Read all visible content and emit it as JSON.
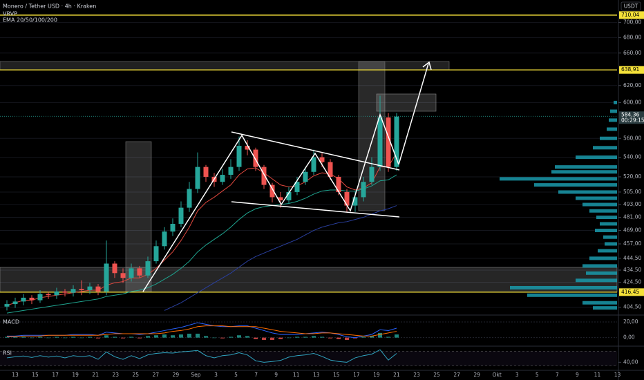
{
  "chart_data": {
    "type": "candlestick",
    "title": "Monero / Tether USD · 4h · Kraken",
    "indicator_labels": [
      "VRVP",
      "EMA 20/50/100/200"
    ],
    "currency": "USDT",
    "log_scale": true,
    "grid": true,
    "up_color": "#26a69a",
    "down_color": "#ef5350",
    "ylim": [
      399,
      731
    ],
    "yticks": [
      {
        "value": 700,
        "label": "700,00"
      },
      {
        "value": 680,
        "label": "680,00"
      },
      {
        "value": 660,
        "label": "660,00"
      },
      {
        "value": 620,
        "label": "620,00"
      },
      {
        "value": 600,
        "label": "600,00"
      },
      {
        "value": 560,
        "label": "560,00"
      },
      {
        "value": 540,
        "label": "540,00"
      },
      {
        "value": 520,
        "label": "520,00"
      },
      {
        "value": 505,
        "label": "505,00"
      },
      {
        "value": 493,
        "label": "493,00"
      },
      {
        "value": 481,
        "label": "481,00"
      },
      {
        "value": 469,
        "label": "469,00"
      },
      {
        "value": 457,
        "label": "457,00"
      },
      {
        "value": 444.5,
        "label": "444,50"
      },
      {
        "value": 434.5,
        "label": "434,50"
      },
      {
        "value": 424.5,
        "label": "424,50"
      },
      {
        "value": 404.5,
        "label": "404,50"
      }
    ],
    "levels": [
      {
        "value": 710.04,
        "label": "710,04"
      },
      {
        "value": 638.91,
        "label": "638,91"
      },
      {
        "value": 416.45,
        "label": "416,45"
      }
    ],
    "level_color": "#f5e13a",
    "current_price": {
      "value": 584.36,
      "label": "584,36",
      "countdown": "00:29:15"
    },
    "x_labels": [
      "13",
      "15",
      "17",
      "19",
      "21",
      "23",
      "25",
      "27",
      "29",
      "Sep",
      "3",
      "5",
      "7",
      "9",
      "11",
      "13",
      "15",
      "17",
      "19",
      "21",
      "23",
      "25",
      "27",
      "29",
      "Okt",
      "3",
      "5",
      "7",
      "9",
      "11",
      "13"
    ],
    "open": [
      405,
      407,
      409,
      412,
      410,
      415,
      414,
      417,
      416,
      419,
      418,
      421,
      417,
      440,
      432,
      428,
      436,
      430,
      442,
      455,
      468,
      475,
      490,
      508,
      530,
      520,
      515,
      522,
      530,
      552,
      548,
      530,
      512,
      500,
      497,
      505,
      515,
      525,
      540,
      535,
      520,
      505,
      492,
      500,
      515,
      530,
      583,
      530
    ],
    "high": [
      410,
      412,
      415,
      414,
      418,
      417,
      420,
      419,
      422,
      426,
      424,
      423,
      460,
      442,
      436,
      440,
      438,
      446,
      460,
      472,
      480,
      496,
      515,
      545,
      532,
      524,
      528,
      538,
      562,
      558,
      550,
      532,
      514,
      505,
      510,
      520,
      530,
      548,
      544,
      538,
      522,
      508,
      506,
      520,
      540,
      608,
      588,
      588
    ],
    "low": [
      402,
      404,
      406,
      407,
      408,
      411,
      411,
      413,
      413,
      414,
      415,
      414,
      414,
      428,
      424,
      425,
      428,
      428,
      440,
      452,
      464,
      472,
      486,
      504,
      515,
      510,
      512,
      518,
      526,
      542,
      526,
      508,
      495,
      490,
      494,
      502,
      512,
      522,
      530,
      517,
      502,
      486,
      486,
      496,
      512,
      526,
      525,
      526
    ],
    "close": [
      407,
      409,
      412,
      410,
      415,
      414,
      417,
      416,
      419,
      418,
      421,
      417,
      440,
      432,
      428,
      436,
      430,
      442,
      455,
      468,
      475,
      490,
      508,
      530,
      520,
      515,
      522,
      530,
      552,
      548,
      530,
      512,
      500,
      497,
      505,
      515,
      525,
      540,
      535,
      520,
      505,
      492,
      500,
      515,
      530,
      583,
      530,
      584
    ],
    "series": [
      {
        "name": "EMA 20",
        "color": "#e0483e",
        "values": [
          406,
          408,
          410,
          410,
          412,
          413,
          414,
          415,
          416,
          417,
          418,
          418,
          422,
          424,
          425,
          428,
          428,
          431,
          436,
          443,
          450,
          460,
          472,
          487,
          495,
          500,
          506,
          512,
          522,
          528,
          529,
          524,
          518,
          512,
          510,
          511,
          515,
          521,
          524,
          523,
          518,
          510,
          507,
          509,
          514,
          530,
          530,
          545
        ]
      },
      {
        "name": "EMA 50",
        "color": "#1fa38f",
        "values": [
          400,
          401,
          402,
          403,
          404,
          405,
          406,
          407,
          408,
          409,
          410,
          411,
          413,
          414,
          415,
          417,
          418,
          420,
          423,
          427,
          431,
          436,
          442,
          450,
          456,
          461,
          466,
          472,
          479,
          485,
          489,
          491,
          492,
          493,
          494,
          496,
          499,
          503,
          506,
          507,
          507,
          506,
          506,
          508,
          511,
          516,
          517,
          522
        ]
      },
      {
        "name": "EMA 100",
        "color": "#2a3f9e",
        "values": [
          null,
          null,
          null,
          null,
          null,
          null,
          null,
          null,
          null,
          null,
          null,
          null,
          null,
          null,
          null,
          null,
          null,
          null,
          null,
          402,
          405,
          408,
          412,
          416,
          420,
          424,
          428,
          432,
          437,
          442,
          446,
          449,
          452,
          455,
          458,
          461,
          465,
          469,
          472,
          474,
          476,
          477,
          479,
          481,
          484,
          487,
          489,
          492
        ]
      }
    ],
    "volume_profile": {
      "color": "#1a9aab",
      "prices": [
        600,
        590,
        580,
        570,
        560,
        550,
        540,
        530,
        525,
        518,
        512,
        505,
        499,
        493,
        487,
        481,
        475,
        469,
        463,
        457,
        451,
        444.5,
        438,
        432,
        426,
        420,
        414,
        408,
        404
      ],
      "volumes": [
        5,
        10,
        12,
        15,
        25,
        35,
        60,
        90,
        95,
        170,
        120,
        85,
        60,
        50,
        40,
        30,
        25,
        32,
        20,
        18,
        28,
        40,
        50,
        45,
        60,
        155,
        130,
        50,
        35
      ]
    },
    "macd": {
      "title": "MACD",
      "ylim": [
        -10,
        27
      ],
      "yticks": [
        {
          "value": 20,
          "label": "20,00"
        },
        {
          "value": 0,
          "label": "0,00"
        }
      ],
      "histogram": [
        1,
        1,
        1,
        0,
        1,
        0,
        1,
        0,
        1,
        0,
        1,
        -1,
        3,
        1,
        -1,
        1,
        -1,
        2,
        3,
        4,
        3,
        4,
        5,
        5,
        2,
        0,
        -1,
        1,
        3,
        2,
        -2,
        -3,
        -3,
        -2,
        0,
        1,
        1,
        2,
        1,
        -1,
        -2,
        -3,
        -1,
        1,
        2,
        6,
        1,
        4
      ],
      "series": [
        {
          "name": "MACD",
          "color": "#2962ff",
          "values": [
            2,
            2,
            3,
            3,
            3,
            3,
            3,
            3,
            4,
            4,
            4,
            3,
            7,
            6,
            5,
            5,
            4,
            5,
            7,
            9,
            11,
            13,
            16,
            19,
            17,
            15,
            14,
            14,
            15,
            15,
            12,
            9,
            6,
            4,
            4,
            4,
            5,
            6,
            7,
            6,
            4,
            1,
            0,
            2,
            4,
            10,
            9,
            12
          ]
        },
        {
          "name": "Signal",
          "color": "#ff6d00",
          "values": [
            1,
            1,
            2,
            2,
            2,
            3,
            3,
            3,
            3,
            3,
            3,
            3,
            4,
            5,
            5,
            5,
            5,
            5,
            5,
            6,
            8,
            9,
            11,
            14,
            15,
            15,
            15,
            14,
            14,
            14,
            14,
            12,
            10,
            8,
            7,
            6,
            5,
            5,
            6,
            6,
            5,
            4,
            3,
            2,
            2,
            4,
            6,
            8
          ]
        }
      ]
    },
    "rsi": {
      "title": "RSI",
      "color": "#2fa4c0",
      "ylim": [
        20,
        80
      ],
      "yticks": [
        {
          "value": 40,
          "label": "40,00"
        }
      ],
      "bands": [
        30,
        70
      ],
      "values": [
        52,
        55,
        57,
        53,
        58,
        54,
        57,
        52,
        58,
        55,
        58,
        48,
        68,
        55,
        48,
        58,
        50,
        60,
        64,
        66,
        65,
        68,
        70,
        72,
        58,
        52,
        58,
        60,
        66,
        60,
        44,
        40,
        42,
        45,
        54,
        58,
        60,
        64,
        56,
        46,
        42,
        40,
        52,
        58,
        62,
        74,
        46,
        64
      ]
    }
  }
}
